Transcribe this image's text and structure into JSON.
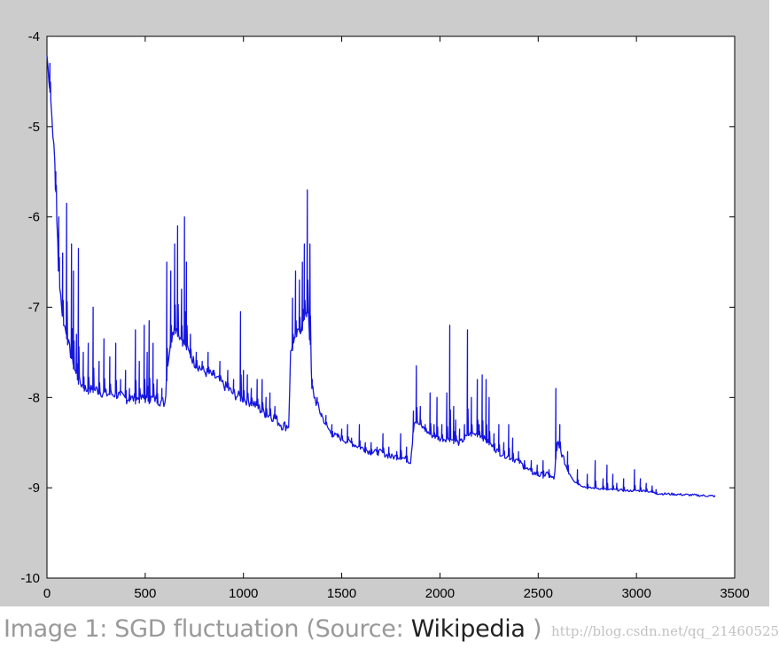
{
  "chart_data": {
    "type": "line",
    "title": "",
    "xlabel": "",
    "ylabel": "",
    "xlim": [
      0,
      3500
    ],
    "ylim": [
      -10,
      -4
    ],
    "x_ticks": [
      "0",
      "500",
      "1000",
      "1500",
      "2000",
      "2500",
      "3000",
      "3500"
    ],
    "y_ticks": [
      "-4",
      "-5",
      "-6",
      "-7",
      "-8",
      "-9",
      "-10"
    ],
    "grid": false,
    "legend": "none",
    "series": [
      {
        "color": "#1515e0",
        "baseline": [
          [
            0,
            -4.2
          ],
          [
            20,
            -4.7
          ],
          [
            40,
            -5.4
          ],
          [
            60,
            -6.6
          ],
          [
            80,
            -7.1
          ],
          [
            100,
            -7.3
          ],
          [
            130,
            -7.6
          ],
          [
            160,
            -7.8
          ],
          [
            200,
            -7.9
          ],
          [
            250,
            -7.9
          ],
          [
            300,
            -7.95
          ],
          [
            350,
            -7.95
          ],
          [
            400,
            -8.0
          ],
          [
            450,
            -8.0
          ],
          [
            500,
            -8.0
          ],
          [
            550,
            -8.0
          ],
          [
            600,
            -8.05
          ],
          [
            620,
            -7.5
          ],
          [
            650,
            -7.2
          ],
          [
            700,
            -7.4
          ],
          [
            750,
            -7.6
          ],
          [
            800,
            -7.7
          ],
          [
            850,
            -7.75
          ],
          [
            900,
            -7.85
          ],
          [
            950,
            -7.95
          ],
          [
            1000,
            -8.0
          ],
          [
            1050,
            -8.05
          ],
          [
            1100,
            -8.15
          ],
          [
            1150,
            -8.2
          ],
          [
            1200,
            -8.3
          ],
          [
            1230,
            -8.3
          ],
          [
            1240,
            -7.5
          ],
          [
            1270,
            -7.3
          ],
          [
            1300,
            -7.2
          ],
          [
            1330,
            -7.0
          ],
          [
            1350,
            -7.9
          ],
          [
            1380,
            -8.1
          ],
          [
            1420,
            -8.3
          ],
          [
            1450,
            -8.4
          ],
          [
            1500,
            -8.45
          ],
          [
            1550,
            -8.5
          ],
          [
            1600,
            -8.55
          ],
          [
            1650,
            -8.6
          ],
          [
            1700,
            -8.6
          ],
          [
            1750,
            -8.65
          ],
          [
            1800,
            -8.65
          ],
          [
            1850,
            -8.7
          ],
          [
            1870,
            -8.25
          ],
          [
            1900,
            -8.3
          ],
          [
            1950,
            -8.4
          ],
          [
            2000,
            -8.45
          ],
          [
            2050,
            -8.45
          ],
          [
            2100,
            -8.5
          ],
          [
            2150,
            -8.4
          ],
          [
            2200,
            -8.4
          ],
          [
            2250,
            -8.5
          ],
          [
            2300,
            -8.6
          ],
          [
            2350,
            -8.65
          ],
          [
            2400,
            -8.7
          ],
          [
            2450,
            -8.8
          ],
          [
            2500,
            -8.85
          ],
          [
            2550,
            -8.85
          ],
          [
            2580,
            -8.9
          ],
          [
            2600,
            -8.5
          ],
          [
            2650,
            -8.8
          ],
          [
            2700,
            -8.95
          ],
          [
            2750,
            -9.0
          ],
          [
            2800,
            -9.0
          ],
          [
            2850,
            -9.02
          ],
          [
            2900,
            -9.02
          ],
          [
            2950,
            -9.03
          ],
          [
            3000,
            -9.03
          ],
          [
            3050,
            -9.03
          ],
          [
            3100,
            -9.06
          ],
          [
            3200,
            -9.07
          ],
          [
            3300,
            -9.08
          ],
          [
            3400,
            -9.09
          ]
        ],
        "spikes": [
          [
            15,
            -4.3
          ],
          [
            45,
            -5.5
          ],
          [
            60,
            -6.0
          ],
          [
            80,
            -6.4
          ],
          [
            100,
            -5.85
          ],
          [
            125,
            -6.3
          ],
          [
            135,
            -6.6
          ],
          [
            150,
            -7.3
          ],
          [
            160,
            -6.35
          ],
          [
            185,
            -7.5
          ],
          [
            210,
            -7.4
          ],
          [
            235,
            -7.0
          ],
          [
            265,
            -7.6
          ],
          [
            290,
            -7.35
          ],
          [
            320,
            -7.55
          ],
          [
            350,
            -7.4
          ],
          [
            375,
            -7.8
          ],
          [
            400,
            -7.7
          ],
          [
            420,
            -7.9
          ],
          [
            450,
            -7.25
          ],
          [
            470,
            -7.6
          ],
          [
            495,
            -7.2
          ],
          [
            510,
            -7.5
          ],
          [
            520,
            -7.15
          ],
          [
            540,
            -7.4
          ],
          [
            560,
            -7.8
          ],
          [
            585,
            -7.9
          ],
          [
            610,
            -6.5
          ],
          [
            630,
            -6.6
          ],
          [
            650,
            -6.3
          ],
          [
            665,
            -6.1
          ],
          [
            685,
            -6.8
          ],
          [
            700,
            -6.0
          ],
          [
            710,
            -6.5
          ],
          [
            730,
            -7.3
          ],
          [
            760,
            -7.5
          ],
          [
            790,
            -7.6
          ],
          [
            820,
            -7.5
          ],
          [
            850,
            -7.7
          ],
          [
            880,
            -7.6
          ],
          [
            920,
            -7.7
          ],
          [
            950,
            -7.8
          ],
          [
            985,
            -7.05
          ],
          [
            1000,
            -7.7
          ],
          [
            1020,
            -7.75
          ],
          [
            1040,
            -7.9
          ],
          [
            1070,
            -7.8
          ],
          [
            1095,
            -7.8
          ],
          [
            1115,
            -8.0
          ],
          [
            1135,
            -7.95
          ],
          [
            1160,
            -8.1
          ],
          [
            1250,
            -6.9
          ],
          [
            1265,
            -6.6
          ],
          [
            1285,
            -6.7
          ],
          [
            1300,
            -6.5
          ],
          [
            1310,
            -6.3
          ],
          [
            1325,
            -5.7
          ],
          [
            1338,
            -6.3
          ],
          [
            1350,
            -7.8
          ],
          [
            1375,
            -8.0
          ],
          [
            1395,
            -8.2
          ],
          [
            1420,
            -8.2
          ],
          [
            1450,
            -8.3
          ],
          [
            1480,
            -8.4
          ],
          [
            1500,
            -8.35
          ],
          [
            1530,
            -8.3
          ],
          [
            1550,
            -8.45
          ],
          [
            1590,
            -8.3
          ],
          [
            1620,
            -8.5
          ],
          [
            1650,
            -8.5
          ],
          [
            1680,
            -8.55
          ],
          [
            1710,
            -8.4
          ],
          [
            1740,
            -8.55
          ],
          [
            1780,
            -8.6
          ],
          [
            1800,
            -8.4
          ],
          [
            1830,
            -8.55
          ],
          [
            1865,
            -8.15
          ],
          [
            1880,
            -7.65
          ],
          [
            1900,
            -8.1
          ],
          [
            1925,
            -8.3
          ],
          [
            1950,
            -7.95
          ],
          [
            1970,
            -8.3
          ],
          [
            1985,
            -8.0
          ],
          [
            2010,
            -8.3
          ],
          [
            2035,
            -7.95
          ],
          [
            2050,
            -7.2
          ],
          [
            2070,
            -8.1
          ],
          [
            2080,
            -8.25
          ],
          [
            2100,
            -8.35
          ],
          [
            2125,
            -8.3
          ],
          [
            2140,
            -7.25
          ],
          [
            2160,
            -8.0
          ],
          [
            2190,
            -7.8
          ],
          [
            2200,
            -8.3
          ],
          [
            2215,
            -7.75
          ],
          [
            2235,
            -7.8
          ],
          [
            2250,
            -8.0
          ],
          [
            2275,
            -8.4
          ],
          [
            2300,
            -8.3
          ],
          [
            2325,
            -8.5
          ],
          [
            2350,
            -8.3
          ],
          [
            2370,
            -8.45
          ],
          [
            2400,
            -8.6
          ],
          [
            2430,
            -8.7
          ],
          [
            2465,
            -8.7
          ],
          [
            2495,
            -8.75
          ],
          [
            2525,
            -8.7
          ],
          [
            2555,
            -8.8
          ],
          [
            2590,
            -7.9
          ],
          [
            2610,
            -8.3
          ],
          [
            2650,
            -8.6
          ],
          [
            2700,
            -8.8
          ],
          [
            2750,
            -8.85
          ],
          [
            2790,
            -8.7
          ],
          [
            2830,
            -8.9
          ],
          [
            2850,
            -8.75
          ],
          [
            2880,
            -8.85
          ],
          [
            2900,
            -8.95
          ],
          [
            2935,
            -8.9
          ],
          [
            2990,
            -8.8
          ],
          [
            3020,
            -8.9
          ],
          [
            3050,
            -8.95
          ],
          [
            3080,
            -8.98
          ],
          [
            3100,
            -9.02
          ]
        ]
      }
    ]
  },
  "caption": {
    "prefix": "Image 1: SGD fluctuation (Source: ",
    "link": "Wikipedia",
    "suffix": " )"
  },
  "watermark": "http://blog.csdn.net/qq_21460525"
}
